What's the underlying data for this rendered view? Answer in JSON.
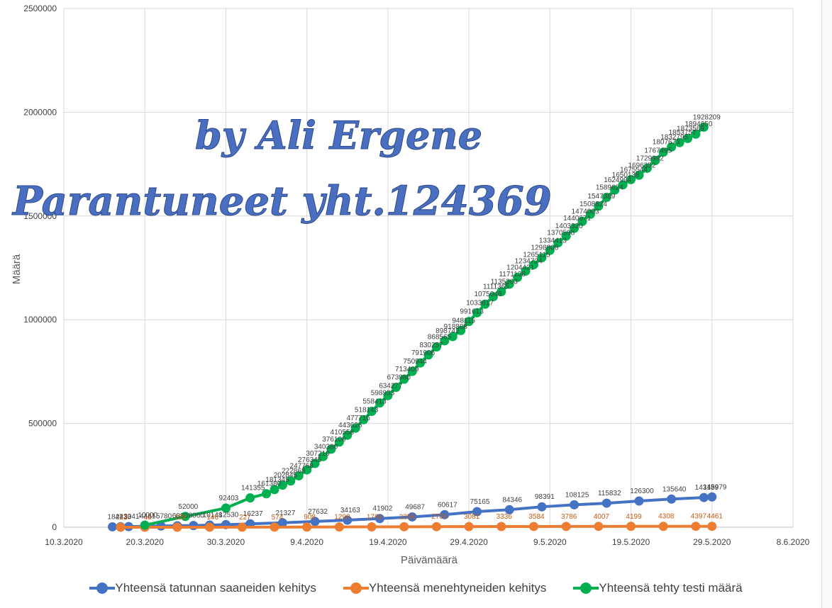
{
  "chart_data": {
    "type": "line",
    "xlabel": "Päivämäärä",
    "ylabel": "Määrä",
    "ylim": [
      0,
      2500000
    ],
    "y_ticks": [
      "0",
      "500000",
      "1000000",
      "1500000",
      "2000000",
      "2500000"
    ],
    "x_ticks": [
      "10.3.2020",
      "20.3.2020",
      "30.3.2020",
      "9.4.2020",
      "19.4.2020",
      "29.4.2020",
      "9.5.2020",
      "19.5.2020",
      "29.5.2020",
      "8.6.2020"
    ],
    "grid": true,
    "legend_position": "bottom",
    "watermark": [
      "by Ali Ergene",
      "Parantuneet yht.124369"
    ],
    "series": [
      {
        "name": "Yhteensä tatunnan saaneiden kehitys",
        "color": "#4472c4",
        "points": [
          [
            "2020-03-16",
            1847
          ],
          [
            "2020-03-17",
            2433
          ],
          [
            "2020-03-18",
            3041
          ],
          [
            "2020-03-20",
            4461
          ],
          [
            "2020-03-22",
            5780
          ],
          [
            "2020-03-24",
            6830
          ],
          [
            "2020-03-26",
            8060
          ],
          [
            "2020-03-28",
            10148
          ],
          [
            "2020-03-30",
            12530
          ],
          [
            "2020-04-02",
            16237
          ],
          [
            "2020-04-06",
            21327
          ],
          [
            "2020-04-10",
            27632
          ],
          [
            "2020-04-14",
            34163
          ],
          [
            "2020-04-18",
            41902
          ],
          [
            "2020-04-22",
            49687
          ],
          [
            "2020-04-26",
            60617
          ],
          [
            "2020-04-30",
            75165
          ],
          [
            "2020-05-04",
            84346
          ],
          [
            "2020-05-08",
            98391
          ],
          [
            "2020-05-12",
            108125
          ],
          [
            "2020-05-16",
            115832
          ],
          [
            "2020-05-20",
            126300
          ],
          [
            "2020-05-24",
            135640
          ],
          [
            "2020-05-28",
            143189
          ],
          [
            "2020-05-29",
            145979
          ]
        ]
      },
      {
        "name": "Yhteensä menehtyneiden kehitys",
        "color": "#ed7d31",
        "points": [
          [
            "2020-03-17",
            21
          ],
          [
            "2020-03-20",
            48
          ],
          [
            "2020-03-24",
            109
          ],
          [
            "2020-03-28",
            146
          ],
          [
            "2020-04-01",
            227
          ],
          [
            "2020-04-05",
            574
          ],
          [
            "2020-04-09",
            908
          ],
          [
            "2020-04-13",
            1298
          ],
          [
            "2020-04-17",
            1769
          ],
          [
            "2020-04-21",
            2259
          ],
          [
            "2020-04-25",
            2706
          ],
          [
            "2020-04-29",
            3081
          ],
          [
            "2020-05-03",
            3336
          ],
          [
            "2020-05-07",
            3584
          ],
          [
            "2020-05-11",
            3786
          ],
          [
            "2020-05-15",
            4007
          ],
          [
            "2020-05-19",
            4199
          ],
          [
            "2020-05-23",
            4308
          ],
          [
            "2020-05-27",
            4397
          ],
          [
            "2020-05-29",
            4461
          ]
        ]
      },
      {
        "name": "Yhteensä tehty testi määrä",
        "color": "#00b050",
        "points": [
          [
            "2020-03-20",
            10000
          ],
          [
            "2020-03-25",
            52000
          ],
          [
            "2020-03-30",
            92403
          ],
          [
            "2020-04-02",
            141355
          ],
          [
            "2020-04-04",
            161380
          ],
          [
            "2020-04-05",
            181345
          ],
          [
            "2020-04-06",
            202845
          ],
          [
            "2020-04-07",
            222868
          ],
          [
            "2020-04-08",
            247768
          ],
          [
            "2020-04-09",
            276345
          ],
          [
            "2020-04-10",
            307210
          ],
          [
            "2020-04-11",
            340380
          ],
          [
            "2020-04-12",
            376100
          ],
          [
            "2020-04-13",
            410558
          ],
          [
            "2020-04-14",
            443626
          ],
          [
            "2020-04-15",
            477716
          ],
          [
            "2020-04-16",
            518143
          ],
          [
            "2020-04-17",
            558413
          ],
          [
            "2020-04-18",
            598933
          ],
          [
            "2020-04-19",
            634277
          ],
          [
            "2020-04-20",
            673980
          ],
          [
            "2020-04-21",
            713409
          ],
          [
            "2020-04-22",
            750944
          ],
          [
            "2020-04-23",
            791906
          ],
          [
            "2020-04-24",
            830257
          ],
          [
            "2020-04-25",
            868565
          ],
          [
            "2020-04-26",
            898742
          ],
          [
            "2020-04-27",
            918888
          ],
          [
            "2020-04-28",
            948115
          ],
          [
            "2020-04-29",
            991613
          ],
          [
            "2020-04-30",
            1033617
          ],
          [
            "2020-05-01",
            1075048
          ],
          [
            "2020-05-02",
            1111365
          ],
          [
            "2020-05-03",
            1135363
          ],
          [
            "2020-05-04",
            1171138
          ],
          [
            "2020-05-05",
            1204421
          ],
          [
            "2020-05-06",
            1234724
          ],
          [
            "2020-05-07",
            1265115
          ],
          [
            "2020-05-08",
            1298808
          ],
          [
            "2020-05-09",
            1334413
          ],
          [
            "2020-05-10",
            1370598
          ],
          [
            "2020-05-11",
            1403320
          ],
          [
            "2020-05-12",
            1440671
          ],
          [
            "2020-05-13",
            1474003
          ],
          [
            "2020-05-14",
            1508824
          ],
          [
            "2020-05-15",
            1547389
          ],
          [
            "2020-05-16",
            1589624
          ],
          [
            "2020-05-17",
            1624994
          ],
          [
            "2020-05-18",
            1650138
          ],
          [
            "2020-05-19",
            1675544
          ],
          [
            "2020-05-20",
            1696352
          ],
          [
            "2020-05-21",
            1729982
          ],
          [
            "2020-05-22",
            1767495
          ],
          [
            "2020-05-23",
            1807673
          ],
          [
            "2020-05-24",
            1832795
          ],
          [
            "2020-05-25",
            1853757
          ],
          [
            "2020-05-26",
            1873569
          ],
          [
            "2020-05-27",
            1894650
          ],
          [
            "2020-05-28",
            1928209
          ]
        ]
      }
    ]
  }
}
